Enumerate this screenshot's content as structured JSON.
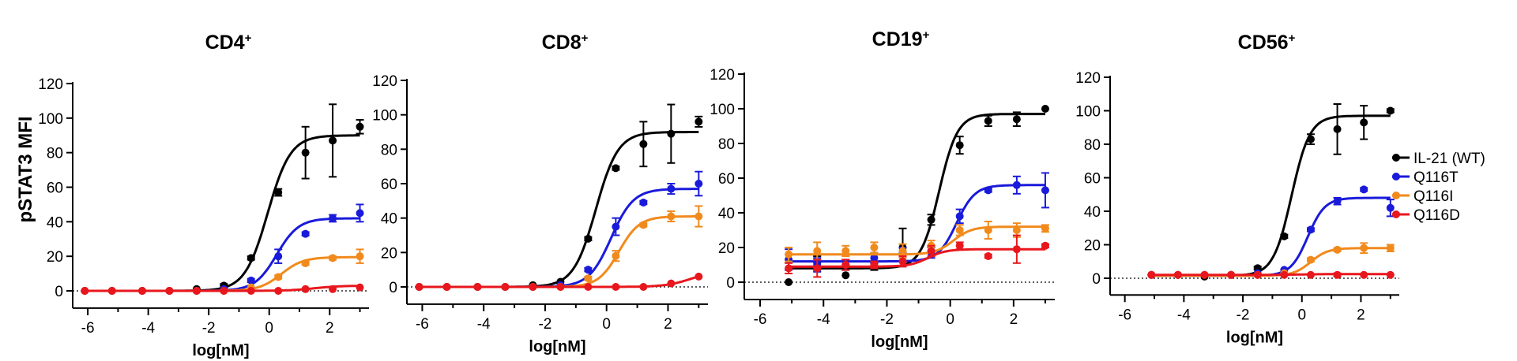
{
  "figure": {
    "ylabel": "pSTAT3 MFI",
    "legend_position": "right"
  },
  "chart_data": [
    {
      "type": "line",
      "title": "CD4",
      "title_superscript": "+",
      "xlabel": "log[nM]",
      "ylabel": "pSTAT3 MFI",
      "xlim": [
        -6.5,
        3.3
      ],
      "ylim": [
        -10,
        120
      ],
      "xticks": [
        -6,
        -4,
        -2,
        0,
        2
      ],
      "yticks": [
        0,
        20,
        40,
        60,
        80,
        100,
        120
      ],
      "x": [
        -6.1,
        -5.2,
        -4.2,
        -3.3,
        -2.4,
        -1.5,
        -0.6,
        0.3,
        1.2,
        2.1,
        3.0
      ],
      "series": [
        {
          "name": "IL-21 (WT)",
          "color": "#000000",
          "values": [
            0,
            0,
            0,
            0,
            1,
            3,
            19,
            57,
            80,
            87,
            95
          ],
          "errors": [
            0,
            0,
            0,
            0,
            0,
            1,
            1,
            2,
            15,
            21,
            4
          ],
          "fit": {
            "bottom": 0,
            "top": 90,
            "ec50": -0.05,
            "hill": 1.15
          }
        },
        {
          "name": "Q116T",
          "color": "#1a1adb",
          "values": [
            0,
            0,
            0,
            0,
            0,
            1,
            6,
            20,
            33,
            42,
            45
          ],
          "errors": [
            0,
            0,
            0,
            0,
            0,
            0,
            1,
            4,
            1,
            2,
            5
          ],
          "fit": {
            "bottom": 0,
            "top": 42,
            "ec50": 0.25,
            "hill": 1.2
          }
        },
        {
          "name": "Q116I",
          "color": "#f18a1c",
          "values": [
            0,
            0,
            0,
            0,
            0,
            0,
            2,
            8,
            16,
            19,
            20
          ],
          "errors": [
            0,
            0,
            0,
            0,
            0,
            0,
            0,
            1,
            1,
            1,
            4
          ],
          "fit": {
            "bottom": 0,
            "top": 19.5,
            "ec50": 0.4,
            "hill": 1.2
          }
        },
        {
          "name": "Q116D",
          "color": "#e8171d",
          "values": [
            0,
            0,
            0,
            0,
            0,
            0,
            0,
            0,
            1,
            1,
            2
          ],
          "errors": [
            0,
            0,
            0,
            0,
            0,
            0,
            0,
            0,
            0,
            0,
            0
          ],
          "fit": {
            "bottom": 0,
            "top": 3,
            "ec50": 1.5,
            "hill": 1.0
          }
        }
      ]
    },
    {
      "type": "line",
      "title": "CD8",
      "title_superscript": "+",
      "xlabel": "log[nM]",
      "ylabel": "",
      "xlim": [
        -6.5,
        3.3
      ],
      "ylim": [
        -10,
        120
      ],
      "xticks": [
        -6,
        -4,
        -2,
        0,
        2
      ],
      "yticks": [
        0,
        20,
        40,
        60,
        80,
        100,
        120
      ],
      "x": [
        -6.1,
        -5.2,
        -4.2,
        -3.3,
        -2.4,
        -1.5,
        -0.6,
        0.3,
        1.2,
        2.1,
        3.0
      ],
      "series": [
        {
          "name": "IL-21 (WT)",
          "color": "#000000",
          "values": [
            0,
            0,
            0,
            0,
            1,
            3,
            28,
            69,
            83,
            89,
            96
          ],
          "errors": [
            0,
            0,
            0,
            0,
            0,
            0,
            1,
            1,
            13,
            17,
            3
          ],
          "fit": {
            "bottom": 0,
            "top": 90,
            "ec50": -0.35,
            "hill": 1.2
          }
        },
        {
          "name": "Q116T",
          "color": "#1a1adb",
          "values": [
            0,
            0,
            0,
            0,
            0,
            1,
            10,
            35,
            49,
            57,
            60
          ],
          "errors": [
            0,
            0,
            0,
            0,
            0,
            0,
            1,
            5,
            1,
            3,
            7
          ],
          "fit": {
            "bottom": 0,
            "top": 57,
            "ec50": 0.15,
            "hill": 1.2
          }
        },
        {
          "name": "Q116I",
          "color": "#f18a1c",
          "values": [
            0,
            0,
            0,
            0,
            0,
            0,
            5,
            18,
            36,
            41,
            41
          ],
          "errors": [
            0,
            0,
            0,
            0,
            0,
            0,
            1,
            3,
            1,
            3,
            6
          ],
          "fit": {
            "bottom": 0,
            "top": 41,
            "ec50": 0.4,
            "hill": 1.3
          }
        },
        {
          "name": "Q116D",
          "color": "#e8171d",
          "values": [
            0,
            0,
            0,
            0,
            0,
            0,
            0,
            0,
            0,
            2,
            6
          ],
          "errors": [
            0,
            0,
            0,
            0,
            0,
            0,
            0,
            0,
            0,
            0,
            0
          ],
          "fit": {
            "bottom": 0,
            "top": 10,
            "ec50": 2.8,
            "hill": 1.0
          }
        }
      ]
    },
    {
      "type": "line",
      "title": "CD19",
      "title_superscript": "+",
      "xlabel": "log[nM]",
      "ylabel": "",
      "xlim": [
        -6.5,
        3.3
      ],
      "ylim": [
        -10,
        120
      ],
      "xticks": [
        -6,
        -4,
        -2,
        0,
        2
      ],
      "yticks": [
        0,
        20,
        40,
        60,
        80,
        100,
        120
      ],
      "x": [
        -5.1,
        -4.2,
        -3.3,
        -2.4,
        -1.5,
        -0.6,
        0.3,
        1.2,
        2.1,
        3.0
      ],
      "series": [
        {
          "name": "IL-21 (WT)",
          "color": "#000000",
          "values": [
            0,
            11,
            4,
            9,
            20,
            36,
            79,
            93,
            94,
            100
          ],
          "errors": [
            0,
            4,
            0,
            2,
            11,
            3,
            5,
            3,
            4,
            0
          ],
          "fit": {
            "bottom": 8,
            "top": 97,
            "ec50": -0.35,
            "hill": 1.5
          }
        },
        {
          "name": "Q116T",
          "color": "#1a1adb",
          "values": [
            13,
            10,
            10,
            14,
            17,
            17,
            38,
            53,
            56,
            53
          ],
          "errors": [
            6,
            4,
            3,
            3,
            3,
            3,
            4,
            1,
            5,
            10
          ],
          "fit": {
            "bottom": 12,
            "top": 56,
            "ec50": 0.2,
            "hill": 1.5
          }
        },
        {
          "name": "Q116I",
          "color": "#f18a1c",
          "values": [
            16,
            18,
            18,
            20,
            18,
            21,
            30,
            30,
            30,
            31
          ],
          "errors": [
            4,
            5,
            3,
            3,
            4,
            3,
            3,
            5,
            4,
            2
          ],
          "fit": {
            "bottom": 16,
            "top": 32,
            "ec50": 0.1,
            "hill": 1.5
          }
        },
        {
          "name": "Q116D",
          "color": "#e8171d",
          "values": [
            8,
            8,
            10,
            10,
            12,
            18,
            21,
            15,
            19,
            21
          ],
          "errors": [
            3,
            5,
            3,
            2,
            3,
            3,
            2,
            1,
            8,
            1
          ],
          "fit": {
            "bottom": 9,
            "top": 19,
            "ec50": -0.7,
            "hill": 1.5
          }
        }
      ]
    },
    {
      "type": "line",
      "title": "CD56",
      "title_superscript": "+",
      "xlabel": "log[nM]",
      "ylabel": "",
      "xlim": [
        -6.5,
        3.3
      ],
      "ylim": [
        -10,
        120
      ],
      "xticks": [
        -6,
        -4,
        -2,
        0,
        2
      ],
      "yticks": [
        0,
        20,
        40,
        60,
        80,
        100,
        120
      ],
      "x": [
        -5.1,
        -4.2,
        -3.3,
        -2.4,
        -1.5,
        -0.6,
        0.3,
        1.2,
        2.1,
        3.0
      ],
      "series": [
        {
          "name": "IL-21 (WT)",
          "color": "#000000",
          "values": [
            2,
            2,
            1,
            2,
            6,
            25,
            83,
            89,
            93,
            100
          ],
          "errors": [
            0,
            0,
            0,
            0,
            1,
            1,
            3,
            15,
            10,
            1
          ],
          "fit": {
            "bottom": 1.5,
            "top": 97,
            "ec50": -0.35,
            "hill": 1.4
          }
        },
        {
          "name": "Q116T",
          "color": "#1a1adb",
          "values": [
            2,
            2,
            2,
            2,
            3,
            5,
            29,
            46,
            53,
            42
          ],
          "errors": [
            0,
            0,
            0,
            0,
            0,
            0,
            1,
            2,
            1,
            5
          ],
          "fit": {
            "bottom": 1.5,
            "top": 48,
            "ec50": 0.2,
            "hill": 1.5
          }
        },
        {
          "name": "Q116I",
          "color": "#f18a1c",
          "values": [
            2,
            2,
            2,
            2,
            2,
            3,
            11,
            17,
            18,
            18
          ],
          "errors": [
            0,
            0,
            0,
            0,
            0,
            0,
            1,
            1,
            3,
            2
          ],
          "fit": {
            "bottom": 1.5,
            "top": 18,
            "ec50": 0.3,
            "hill": 1.5
          }
        },
        {
          "name": "Q116D",
          "color": "#e8171d",
          "values": [
            2,
            2,
            2,
            2,
            2,
            2,
            2,
            2,
            2,
            2
          ],
          "errors": [
            0,
            0,
            0,
            0,
            0,
            0,
            0,
            1,
            0,
            0
          ],
          "fit": {
            "bottom": 2,
            "top": 2.5,
            "ec50": 0,
            "hill": 1.0
          }
        }
      ]
    }
  ]
}
